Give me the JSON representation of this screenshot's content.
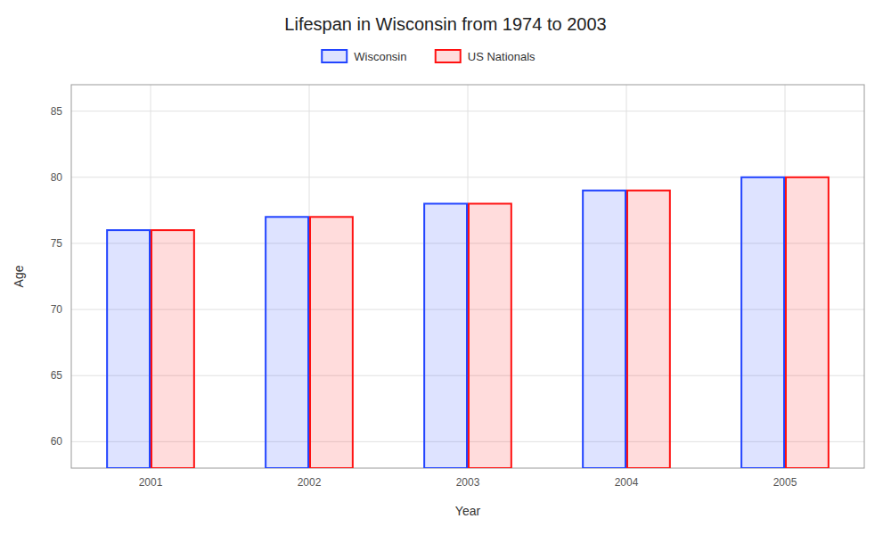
{
  "chart_data": {
    "type": "bar",
    "title": "Lifespan in Wisconsin from 1974 to 2003",
    "xlabel": "Year",
    "ylabel": "Age",
    "categories": [
      "2001",
      "2002",
      "2003",
      "2004",
      "2005"
    ],
    "series": [
      {
        "name": "Wisconsin",
        "color": "#2244ff",
        "values": [
          76,
          77,
          78,
          79,
          80
        ]
      },
      {
        "name": "US Nationals",
        "color": "#ff1111",
        "values": [
          76,
          77,
          78,
          79,
          80
        ]
      }
    ],
    "ylim": [
      58,
      87
    ],
    "yticks": [
      60,
      65,
      70,
      75,
      80,
      85
    ],
    "grid": true,
    "legend": "top"
  }
}
